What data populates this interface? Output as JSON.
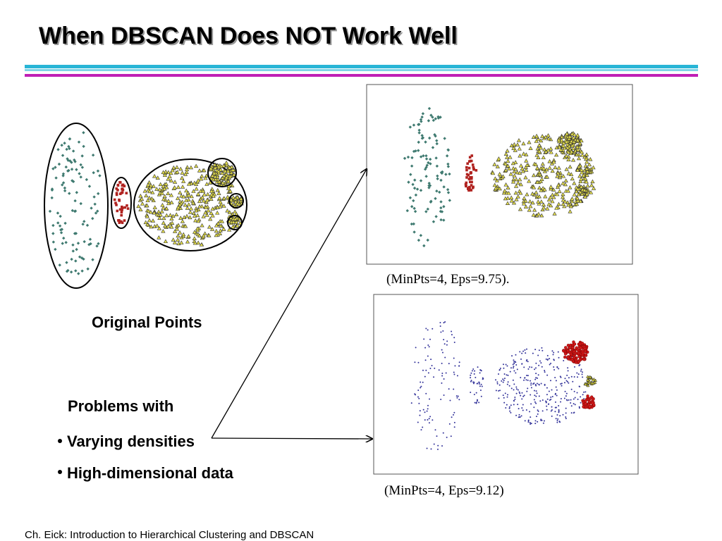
{
  "header": {
    "title": "When DBSCAN Does NOT Work Well"
  },
  "left": {
    "caption": "Original Points"
  },
  "problems": {
    "heading": "Problems with",
    "bullets": [
      "Varying densities",
      "High-dimensional data"
    ]
  },
  "results": [
    {
      "caption": "(MinPts=4, Eps=9.75)."
    },
    {
      "caption": "(MinPts=4, Eps=9.12)"
    }
  ],
  "footer": "Ch. Eick: Introduction to Hierarchical Clustering and DBSCAN"
}
